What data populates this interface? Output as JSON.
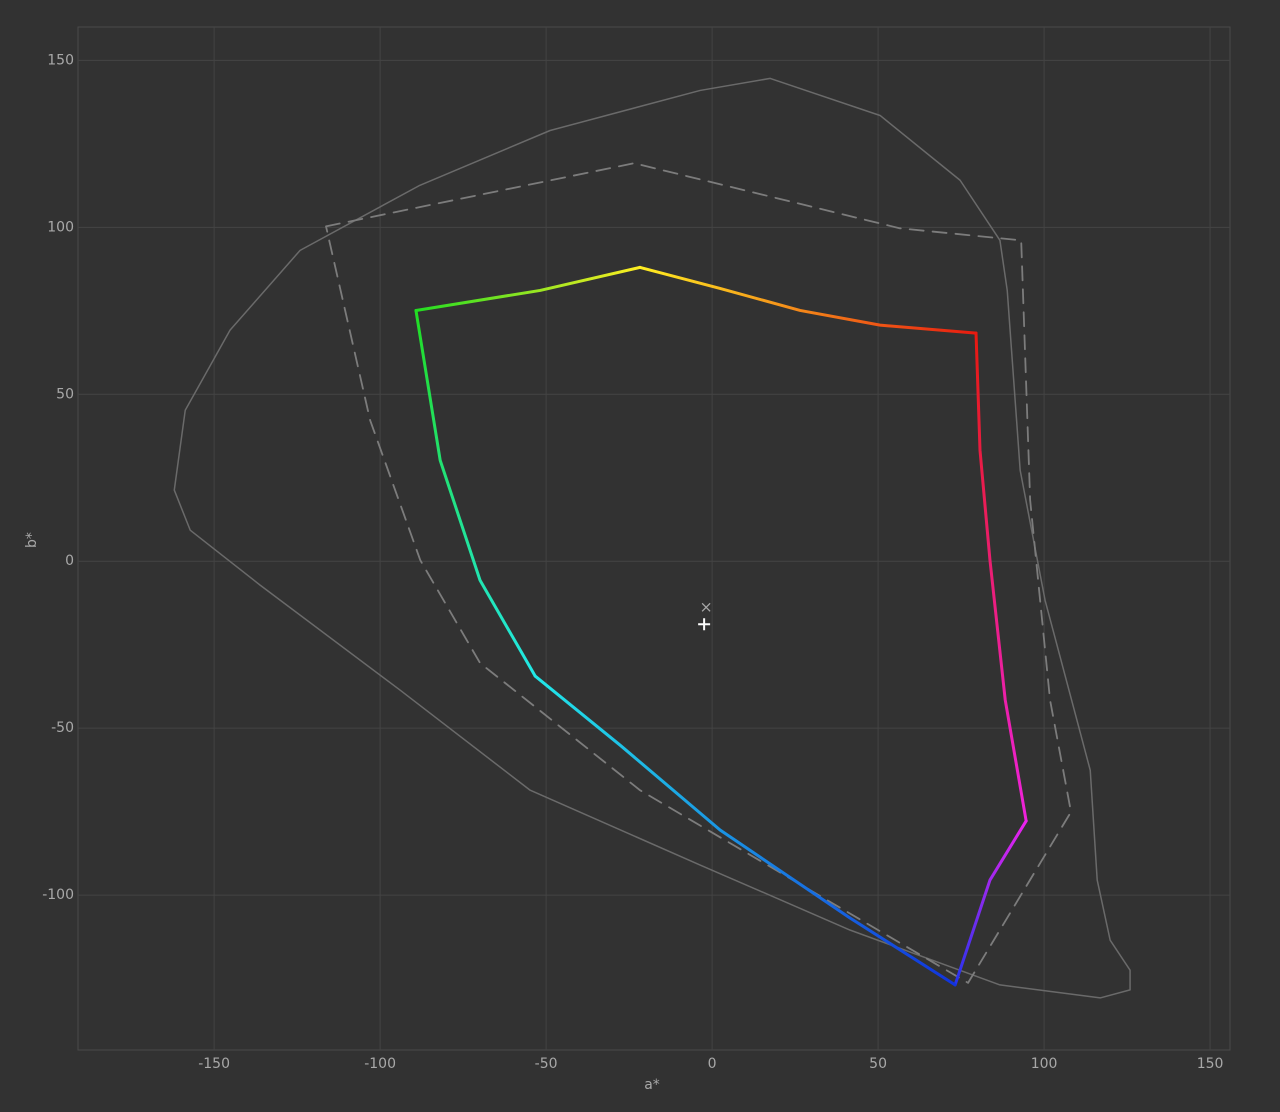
{
  "chart_data": {
    "type": "line",
    "x_label": "a*",
    "y_label": "b*",
    "xlim": [
      -191,
      156
    ],
    "ylim": [
      -146.4,
      160
    ],
    "xticks": [
      -150,
      -100,
      -50,
      0,
      50,
      100,
      150
    ],
    "yticks": [
      -100,
      -50,
      0,
      50,
      100,
      150
    ],
    "grid": true,
    "series": [
      {
        "style": "solid",
        "width": 1.5,
        "color": "#6a6a6a",
        "x": [
          17.5,
          50.6,
          74.7,
          86.7,
          88.9,
          92.8,
          100.3,
          113.9,
          116,
          119.9,
          125.9,
          125.9,
          116.9,
          86.7,
          41.6,
          -3.6,
          -54.8,
          -94,
          -136.1,
          -157.2,
          -162,
          -158.7,
          -145.2,
          -124.1,
          -88,
          -48.8,
          -3.6,
          17.5
        ],
        "values": [
          144.6,
          133.5,
          114.1,
          96.1,
          81.1,
          27.2,
          -11.7,
          -62.6,
          -95.5,
          -113.5,
          -122.5,
          -128.4,
          -130.8,
          -126.9,
          -110.5,
          -91,
          -68.6,
          -38.6,
          -7.2,
          9.3,
          21.3,
          45.2,
          69.2,
          93.1,
          112.6,
          129,
          141,
          144.6
        ]
      },
      {
        "style": "dashed",
        "width": 1.8,
        "color": "#7c7c7c",
        "x": [
          -116.3,
          -23.5,
          56.6,
          93.1,
          95.8,
          101.8,
          108.1,
          77.1,
          -21.7,
          -69.9,
          -87.9,
          -103,
          -116.3
        ],
        "values": [
          100.3,
          119.2,
          99.7,
          96.1,
          18.3,
          -41.6,
          -75.1,
          -126.3,
          -68.6,
          -30.5,
          0.3,
          42.2,
          100.3
        ]
      },
      {
        "style": "solid",
        "width": 3,
        "colors": [
          "#22dd22",
          "#ffee22"
        ],
        "x": [
          -89.2,
          -51.8,
          -21.7
        ],
        "values": [
          75.1,
          81.1,
          88.0
        ]
      },
      {
        "style": "solid",
        "width": 3,
        "colors": [
          "#ffee22",
          "#e81a10"
        ],
        "x": [
          -21.7,
          2.4,
          26.5,
          50.6,
          79.5
        ],
        "values": [
          88.0,
          81.7,
          75.1,
          70.7,
          68.3
        ]
      },
      {
        "style": "solid",
        "width": 3,
        "colors": [
          "#e81a10",
          "#ee22dd"
        ],
        "x": [
          79.5,
          80.7,
          83.7,
          88.3,
          94.6
        ],
        "values": [
          68.3,
          33.2,
          0.3,
          -41.6,
          -77.8
        ]
      },
      {
        "style": "solid",
        "width": 3,
        "colors": [
          "#ee22ee",
          "#2233ee"
        ],
        "x": [
          94.6,
          83.7,
          73.2
        ],
        "values": [
          -77.8,
          -95.5,
          -126.9
        ]
      },
      {
        "style": "solid",
        "width": 3,
        "colors": [
          "#1133dd",
          "#22e8e8"
        ],
        "x": [
          73.2,
          41.6,
          2.4,
          -27.7,
          -53.3
        ],
        "values": [
          -126.9,
          -106.9,
          -80.5,
          -55.1,
          -34.4
        ]
      },
      {
        "style": "solid",
        "width": 3,
        "colors": [
          "#22e8e8",
          "#22dd22"
        ],
        "x": [
          -53.3,
          -69.9,
          -81.9,
          -89.2
        ],
        "values": [
          -34.4,
          -5.7,
          30.2,
          75.1
        ]
      }
    ],
    "markers": [
      {
        "symbol": "x",
        "color": "#a8a8a8",
        "x": -1.8,
        "y": -13.8
      },
      {
        "symbol": "+",
        "color": "#ffffff",
        "x": -2.4,
        "y": -18.9
      }
    ]
  }
}
